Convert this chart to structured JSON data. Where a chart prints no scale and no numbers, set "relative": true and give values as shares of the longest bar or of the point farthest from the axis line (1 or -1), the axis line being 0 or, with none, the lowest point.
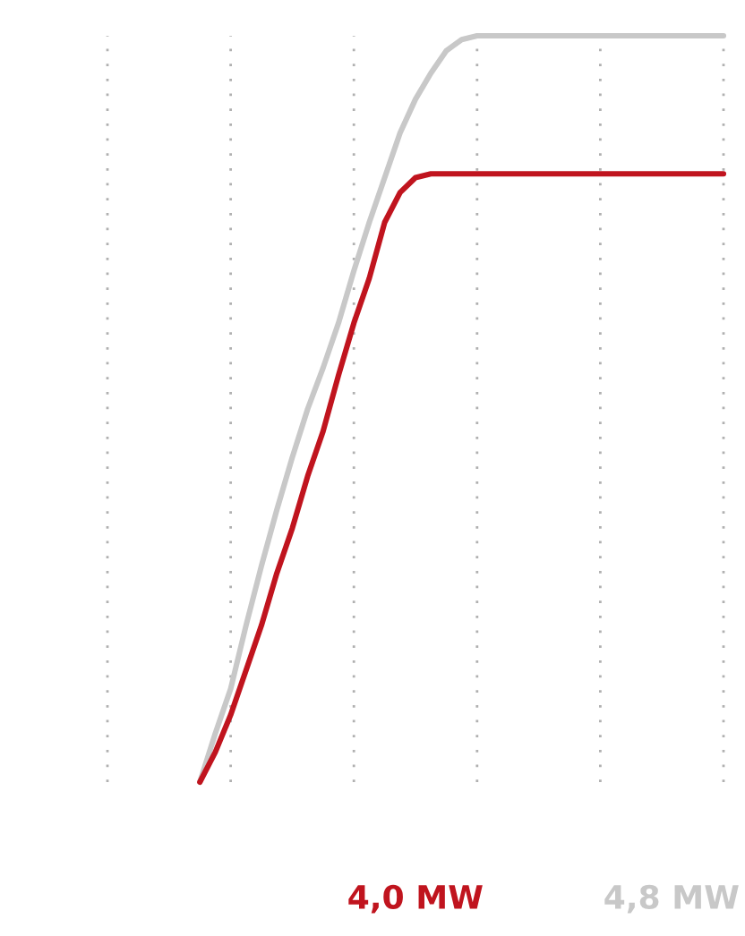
{
  "chart_data": {
    "type": "line",
    "relative": true,
    "categories": [
      null,
      null,
      null,
      null,
      null,
      null,
      null,
      null,
      null,
      null,
      null,
      null,
      null,
      null,
      null,
      null,
      null,
      null,
      null,
      null,
      null,
      null,
      null,
      null,
      null,
      null,
      null,
      null,
      null,
      null,
      null,
      null,
      null,
      null,
      null,
      null,
      null,
      null,
      null,
      null,
      null
    ],
    "series": [
      {
        "name": "4,8 MW",
        "color": "#c8c8c8",
        "values": [
          null,
          null,
          null,
          null,
          null,
          null,
          0,
          0.065,
          0.125,
          0.21,
          0.29,
          0.365,
          0.435,
          0.5,
          0.555,
          0.615,
          0.685,
          0.75,
          0.81,
          0.87,
          0.915,
          0.95,
          0.98,
          0.995,
          1,
          1,
          1,
          1,
          1,
          1,
          1,
          1,
          1,
          1,
          1,
          1,
          1,
          1,
          1,
          1,
          1
        ]
      },
      {
        "name": "4,0 MW",
        "color": "#c0141e",
        "values": [
          null,
          null,
          null,
          null,
          null,
          null,
          0,
          0.04,
          0.09,
          0.15,
          0.21,
          0.28,
          0.34,
          0.41,
          0.47,
          0.545,
          0.615,
          0.675,
          0.75,
          0.79,
          0.81,
          0.815,
          0.815,
          0.815,
          0.815,
          0.815,
          0.815,
          0.815,
          0.815,
          0.815,
          0.815,
          0.815,
          0.815,
          0.815,
          0.815,
          0.815,
          0.815,
          0.815,
          0.815,
          0.815,
          0.815
        ]
      }
    ],
    "grid": "x",
    "legend": "bottom",
    "marker": "none",
    "line_style": "solid"
  }
}
